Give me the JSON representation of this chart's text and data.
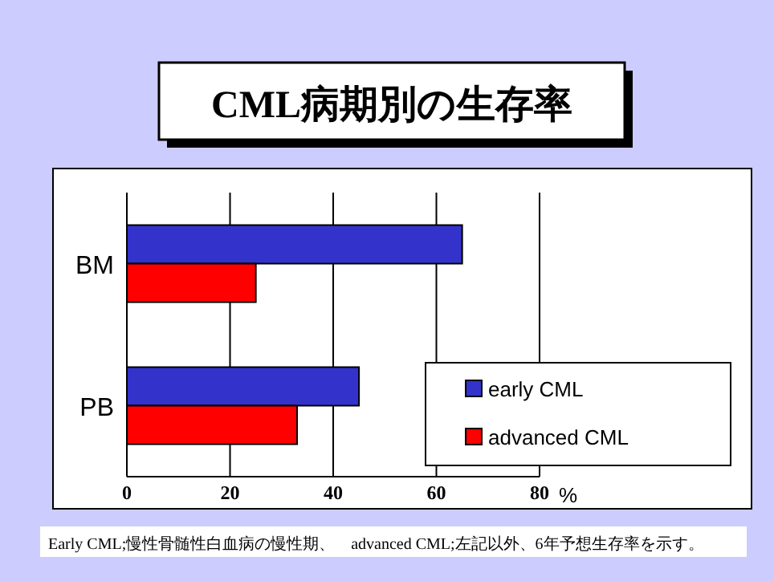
{
  "chart_data": {
    "type": "bar",
    "orientation": "horizontal",
    "title": "CML病期別の生存率",
    "categories": [
      "BM",
      "PB"
    ],
    "series": [
      {
        "name": "early CML",
        "color": "#3333cc",
        "values": [
          65,
          45
        ]
      },
      {
        "name": "advanced CML",
        "color": "#ff0000",
        "values": [
          25,
          33
        ]
      }
    ],
    "xlim": [
      0,
      80
    ],
    "xticks": [
      0,
      20,
      40,
      60,
      80
    ],
    "xlabel": "%",
    "grid": "x",
    "legend": "bottom right",
    "annotations": [
      "Early CML;慢性骨髄性白血病の慢性期、　advanced CML;左記以外、6年予想生存率を示す。"
    ]
  }
}
